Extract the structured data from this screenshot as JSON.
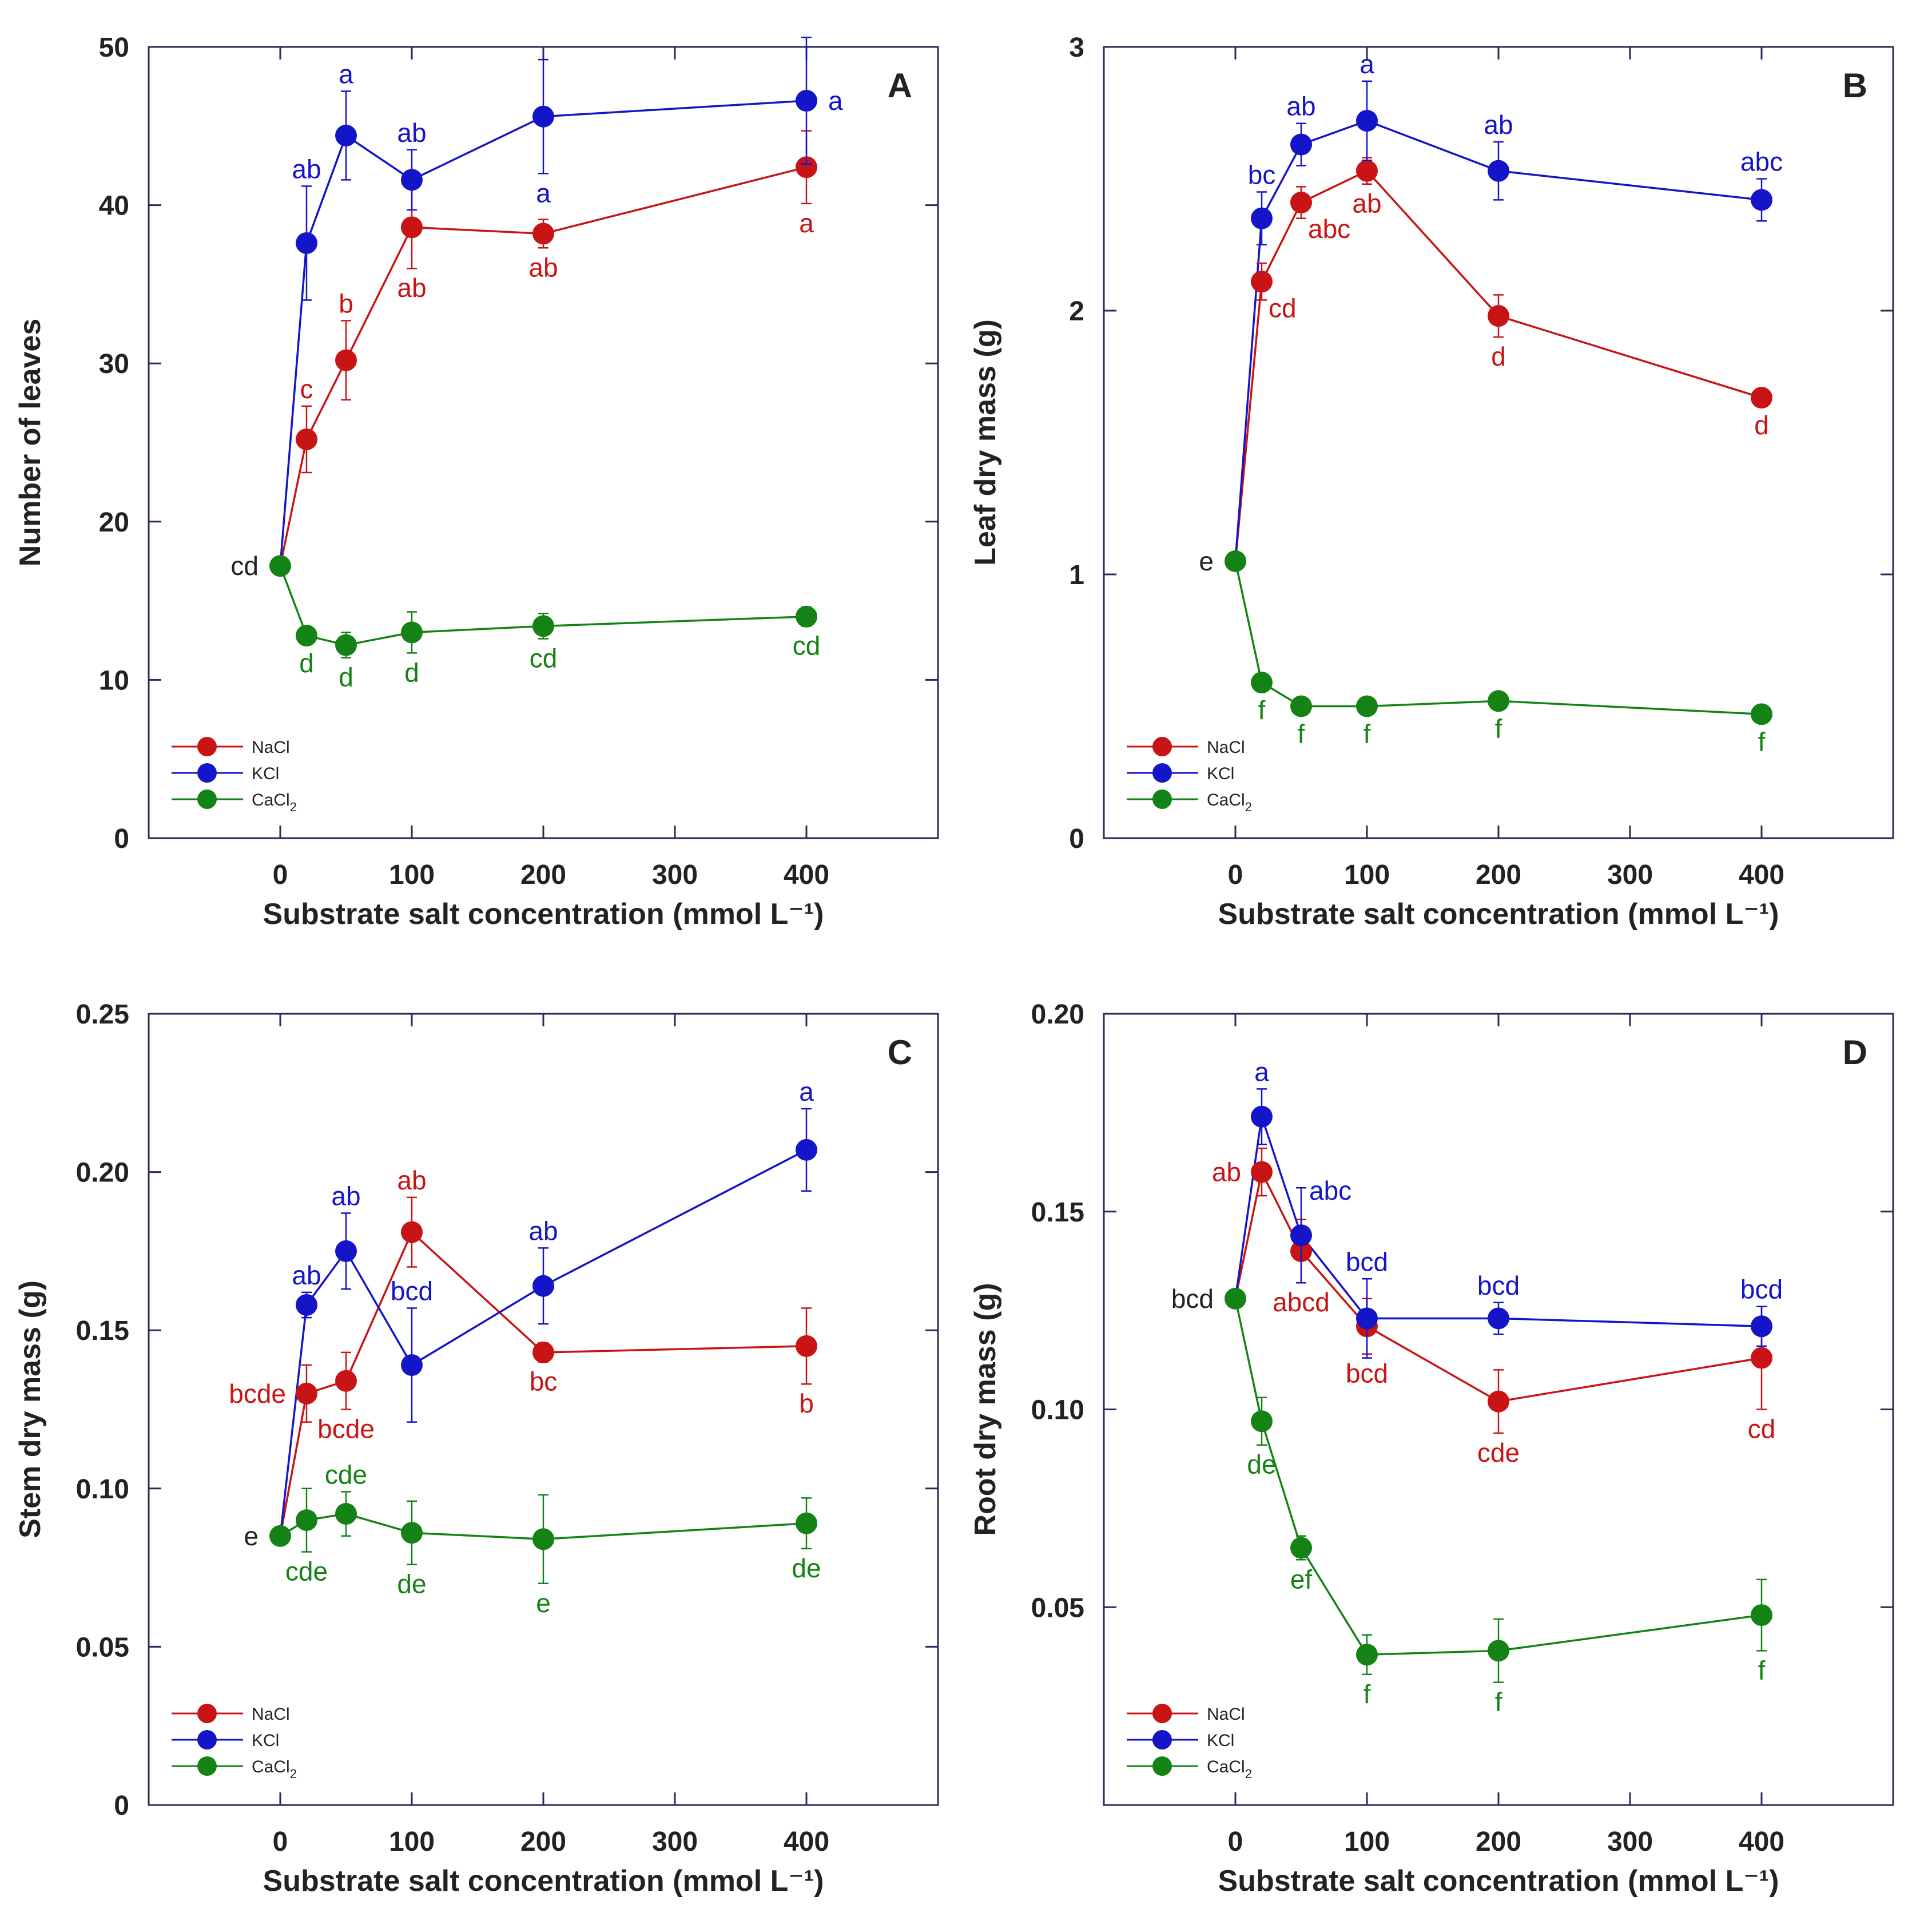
{
  "colors": {
    "NaCl": "#c81414",
    "KCl": "#1414c8",
    "CaCl2": "#148214",
    "axis": "#2a2a5a",
    "ink": "#222222"
  },
  "chart_data": [
    {
      "type": "line",
      "panel": "A",
      "xlabel": "Substrate salt concentration (mmol L⁻¹)",
      "ylabel": "Number of leaves",
      "xlim": [
        -100,
        500
      ],
      "ylim": [
        0,
        50
      ],
      "xticks": [
        0,
        100,
        200,
        300,
        400
      ],
      "yticks": [
        0,
        10,
        20,
        30,
        40,
        50
      ],
      "xtick_labels": [
        "0",
        "100",
        "200",
        "300",
        "400"
      ],
      "ytick_labels": [
        "0",
        "10",
        "20",
        "30",
        "40",
        "50"
      ],
      "legend": {
        "position": "bottom-left",
        "entries": [
          "NaCl",
          "KCl",
          "CaCl"
        ]
      },
      "control": {
        "x": 0,
        "y": 17.2,
        "label": "cd"
      },
      "series": [
        {
          "name": "NaCl",
          "color_key": "NaCl",
          "x": [
            20,
            50,
            100,
            200,
            400
          ],
          "values": [
            25.2,
            30.2,
            38.6,
            38.2,
            42.4
          ],
          "err": [
            2.1,
            2.5,
            2.6,
            0.9,
            2.3
          ],
          "labels": [
            "c",
            "b",
            "ab",
            "ab",
            "a"
          ],
          "label_pos": [
            "above",
            "above",
            "below",
            "below",
            "below"
          ]
        },
        {
          "name": "KCl",
          "color_key": "KCl",
          "x": [
            20,
            50,
            100,
            200,
            400
          ],
          "values": [
            37.6,
            44.4,
            41.6,
            45.6,
            46.6
          ],
          "err": [
            3.6,
            2.8,
            1.9,
            3.6,
            4.0
          ],
          "labels": [
            "ab",
            "a",
            "ab",
            "a",
            "a"
          ],
          "label_pos": [
            "above",
            "above",
            "above",
            "below",
            "right"
          ]
        },
        {
          "name": "CaCl2",
          "color_key": "CaCl2",
          "x": [
            20,
            50,
            100,
            200,
            400
          ],
          "values": [
            12.8,
            12.2,
            13.0,
            13.4,
            14.0
          ],
          "err": [
            0.5,
            0.8,
            1.3,
            0.8,
            0.6
          ],
          "labels": [
            "d",
            "d",
            "d",
            "cd",
            "cd"
          ],
          "label_pos": [
            "below",
            "below",
            "below",
            "below",
            "below"
          ]
        }
      ]
    },
    {
      "type": "line",
      "panel": "B",
      "xlabel": "Substrate salt concentration (mmol L⁻¹)",
      "ylabel": "Leaf dry mass (g)",
      "xlim": [
        -100,
        500
      ],
      "ylim": [
        0,
        3
      ],
      "xticks": [
        0,
        100,
        200,
        300,
        400
      ],
      "yticks": [
        0,
        1,
        2,
        3
      ],
      "xtick_labels": [
        "0",
        "100",
        "200",
        "300",
        "400"
      ],
      "ytick_labels": [
        "0",
        "1",
        "2",
        "3"
      ],
      "legend": {
        "position": "bottom-left",
        "entries": [
          "NaCl",
          "KCl",
          "CaCl"
        ]
      },
      "control": {
        "x": 0,
        "y": 1.05,
        "label": "e"
      },
      "series": [
        {
          "name": "NaCl",
          "color_key": "NaCl",
          "x": [
            20,
            50,
            100,
            200,
            400
          ],
          "values": [
            2.11,
            2.41,
            2.53,
            1.98,
            1.67
          ],
          "err": [
            0.07,
            0.06,
            0.05,
            0.08,
            0.03
          ],
          "labels": [
            "cd",
            "abc",
            "ab",
            "d",
            "d"
          ],
          "label_pos": [
            "below-right",
            "below-right",
            "below",
            "below",
            "below"
          ]
        },
        {
          "name": "KCl",
          "color_key": "KCl",
          "x": [
            20,
            50,
            100,
            200,
            400
          ],
          "values": [
            2.35,
            2.63,
            2.72,
            2.53,
            2.42
          ],
          "err": [
            0.1,
            0.08,
            0.15,
            0.11,
            0.08
          ],
          "labels": [
            "bc",
            "ab",
            "a",
            "ab",
            "abc"
          ],
          "label_pos": [
            "above",
            "above",
            "above",
            "above",
            "above"
          ]
        },
        {
          "name": "CaCl2",
          "color_key": "CaCl2",
          "x": [
            20,
            50,
            100,
            200,
            400
          ],
          "values": [
            0.59,
            0.5,
            0.5,
            0.52,
            0.47
          ],
          "err": [
            0.02,
            0.02,
            0.02,
            0.02,
            0.02
          ],
          "labels": [
            "f",
            "f",
            "f",
            "f",
            "f"
          ],
          "label_pos": [
            "below",
            "below",
            "below",
            "below",
            "below"
          ]
        }
      ]
    },
    {
      "type": "line",
      "panel": "C",
      "xlabel": "Substrate salt concentration (mmol L⁻¹)",
      "ylabel": "Stem dry mass (g)",
      "xlim": [
        -100,
        500
      ],
      "ylim": [
        0,
        0.25
      ],
      "xticks": [
        0,
        100,
        200,
        300,
        400
      ],
      "yticks": [
        0,
        0.05,
        0.1,
        0.15,
        0.2,
        0.25
      ],
      "xtick_labels": [
        "0",
        "100",
        "200",
        "300",
        "400"
      ],
      "ytick_labels": [
        "0",
        "0.05",
        "0.10",
        "0.15",
        "0.20",
        "0.25"
      ],
      "legend": {
        "position": "bottom-left",
        "entries": [
          "NaCl",
          "KCl",
          "CaCl"
        ]
      },
      "control": {
        "x": 0,
        "y": 0.085,
        "label": "e"
      },
      "series": [
        {
          "name": "NaCl",
          "color_key": "NaCl",
          "x": [
            20,
            50,
            100,
            200,
            400
          ],
          "values": [
            0.13,
            0.134,
            0.181,
            0.143,
            0.145
          ],
          "err": [
            0.009,
            0.009,
            0.011,
            0.003,
            0.012
          ],
          "labels": [
            "bcde",
            "bcde",
            "ab",
            "bc",
            "b"
          ],
          "label_pos": [
            "left",
            "below",
            "above",
            "below",
            "below"
          ]
        },
        {
          "name": "KCl",
          "color_key": "KCl",
          "x": [
            20,
            50,
            100,
            200,
            400
          ],
          "values": [
            0.158,
            0.175,
            0.139,
            0.164,
            0.207
          ],
          "err": [
            0.004,
            0.012,
            0.018,
            0.012,
            0.013
          ],
          "labels": [
            "ab",
            "ab",
            "bcd",
            "ab",
            "a"
          ],
          "label_pos": [
            "above",
            "above",
            "above",
            "above",
            "above"
          ]
        },
        {
          "name": "CaCl2",
          "color_key": "CaCl2",
          "x": [
            20,
            50,
            100,
            200,
            400
          ],
          "values": [
            0.09,
            0.092,
            0.086,
            0.084,
            0.089
          ],
          "err": [
            0.01,
            0.007,
            0.01,
            0.014,
            0.008
          ],
          "labels": [
            "cde",
            "cde",
            "de",
            "e",
            "de"
          ],
          "label_pos": [
            "below",
            "above",
            "below",
            "below",
            "below"
          ]
        }
      ]
    },
    {
      "type": "line",
      "panel": "D",
      "xlabel": "Substrate salt concentration (mmol L⁻¹)",
      "ylabel": "Root dry mass (g)",
      "xlim": [
        -100,
        500
      ],
      "ylim": [
        0,
        0.2
      ],
      "xticks": [
        0,
        100,
        200,
        300,
        400
      ],
      "yticks": [
        0.05,
        0.1,
        0.15,
        0.2
      ],
      "xtick_labels": [
        "0",
        "100",
        "200",
        "300",
        "400"
      ],
      "ytick_labels": [
        "0.05",
        "0.10",
        "0.15",
        "0.20"
      ],
      "legend": {
        "position": "bottom-left",
        "entries": [
          "NaCl",
          "KCl",
          "CaCl"
        ]
      },
      "control": {
        "x": 0,
        "y": 0.128,
        "label": "bcd"
      },
      "series": [
        {
          "name": "NaCl",
          "color_key": "NaCl",
          "x": [
            20,
            50,
            100,
            200,
            400
          ],
          "values": [
            0.16,
            0.14,
            0.121,
            0.102,
            0.113
          ],
          "err": [
            0.006,
            0.008,
            0.007,
            0.008,
            0.013
          ],
          "labels": [
            "ab",
            "abcd",
            "bcd",
            "cde",
            "cd"
          ],
          "label_pos": [
            "left",
            "below",
            "below",
            "below",
            "below"
          ]
        },
        {
          "name": "KCl",
          "color_key": "KCl",
          "x": [
            20,
            50,
            100,
            200,
            400
          ],
          "values": [
            0.174,
            0.144,
            0.123,
            0.123,
            0.121
          ],
          "err": [
            0.007,
            0.012,
            0.01,
            0.004,
            0.005
          ],
          "labels": [
            "a",
            "abc",
            "bcd",
            "bcd",
            "bcd"
          ],
          "label_pos": [
            "above",
            "above-right",
            "above",
            "above",
            "above"
          ]
        },
        {
          "name": "CaCl2",
          "color_key": "CaCl2",
          "x": [
            20,
            50,
            100,
            200,
            400
          ],
          "values": [
            0.097,
            0.065,
            0.038,
            0.039,
            0.048
          ],
          "err": [
            0.006,
            0.003,
            0.005,
            0.008,
            0.009
          ],
          "labels": [
            "de",
            "ef",
            "f",
            "f",
            "f"
          ],
          "label_pos": [
            "below",
            "below",
            "below",
            "below",
            "below"
          ]
        }
      ]
    }
  ]
}
